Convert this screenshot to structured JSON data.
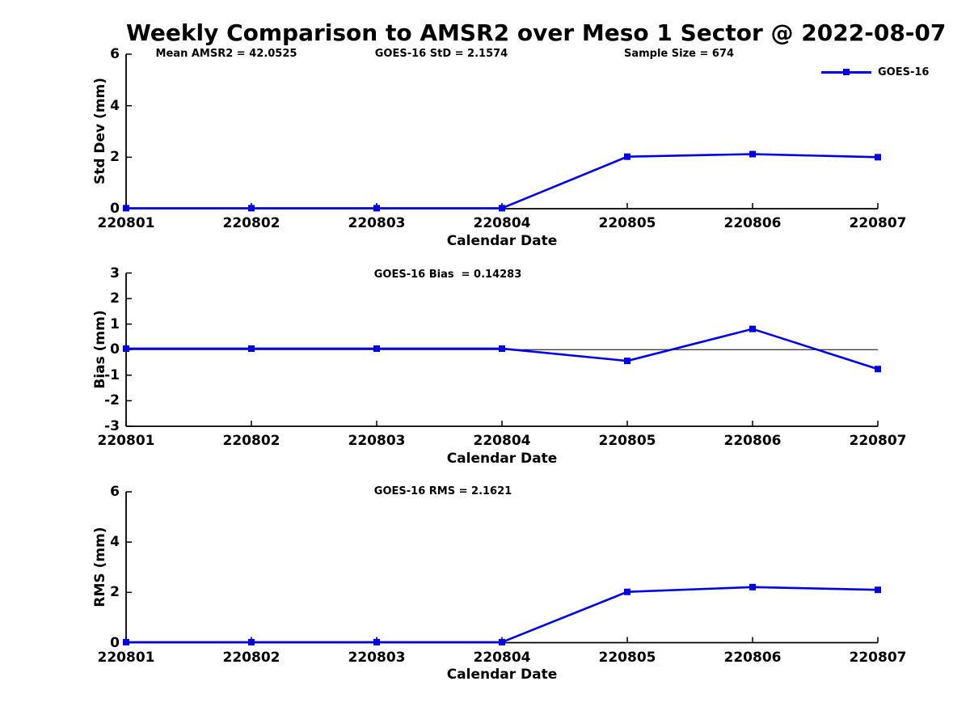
{
  "title": "Weekly Comparison to AMSR2 over Meso 1 Sector @ 2022-08-07",
  "figure": {
    "background_color": "#ffffff",
    "axis_color": "#000000"
  },
  "legend": {
    "label": "GOES-16",
    "series_color": "#0000EE",
    "position": "top-right",
    "marker": "filled-square"
  },
  "stats": {
    "mean_amsr2": 42.0525,
    "goes16_std": 2.1574,
    "sample_size": 674,
    "goes16_bias": 0.14283,
    "goes16_rms": 2.1621
  },
  "chart_data": [
    {
      "type": "line",
      "name": "std-dev",
      "ylabel": "Std Dev (mm)",
      "xlabel": "Calendar Date",
      "ylim": [
        0,
        6
      ],
      "yticks": [
        0,
        2,
        4,
        6
      ],
      "grid": false,
      "legend_position": "top-right",
      "annotations": [
        "Mean AMSR2 = 42.0525",
        "GOES-16 StD = 2.1574",
        "Sample Size = 674"
      ],
      "categories": [
        "220801",
        "220802",
        "220803",
        "220804",
        "220805",
        "220806",
        "220807"
      ],
      "series": [
        {
          "name": "GOES-16",
          "values": [
            0.02,
            0.02,
            0.02,
            0.02,
            2.02,
            2.12,
            2.0
          ]
        }
      ]
    },
    {
      "type": "line",
      "name": "bias",
      "ylabel": "Bias (mm)",
      "xlabel": "Calendar Date",
      "ylim": [
        -3,
        3
      ],
      "yticks": [
        -3,
        -2,
        -1,
        0,
        1,
        2,
        3
      ],
      "zero_line": true,
      "grid": false,
      "annotations": [
        "GOES-16 Bias  = 0.14283"
      ],
      "categories": [
        "220801",
        "220802",
        "220803",
        "220804",
        "220805",
        "220806",
        "220807"
      ],
      "series": [
        {
          "name": "GOES-16",
          "values": [
            0.04,
            0.04,
            0.04,
            0.04,
            -0.44,
            0.81,
            -0.76
          ]
        }
      ]
    },
    {
      "type": "line",
      "name": "rms",
      "ylabel": "RMS (mm)",
      "xlabel": "Calendar Date",
      "ylim": [
        0,
        6
      ],
      "yticks": [
        0,
        2,
        4,
        6
      ],
      "grid": false,
      "annotations": [
        "GOES-16 RMS = 2.1621"
      ],
      "categories": [
        "220801",
        "220802",
        "220803",
        "220804",
        "220805",
        "220806",
        "220807"
      ],
      "series": [
        {
          "name": "GOES-16",
          "values": [
            0.02,
            0.02,
            0.02,
            0.02,
            2.02,
            2.21,
            2.1
          ]
        }
      ]
    }
  ]
}
